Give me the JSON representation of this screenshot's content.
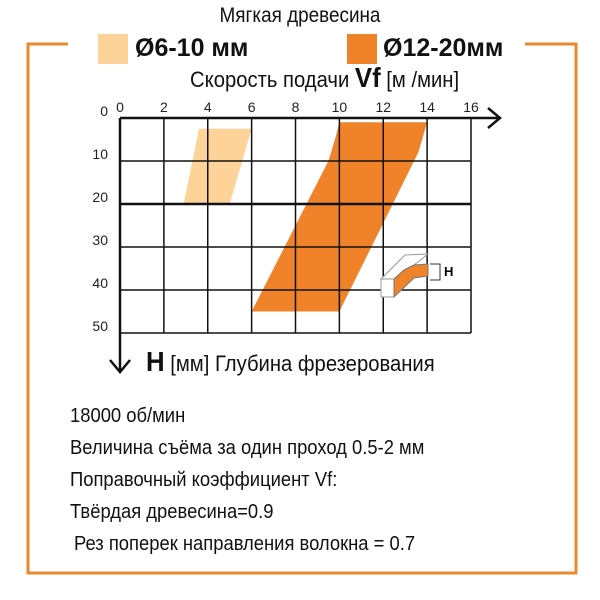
{
  "title": "Мягкая древесина",
  "legend": [
    {
      "label": "Ø6-10 мм",
      "color": "#fdd39a"
    },
    {
      "label": "Ø12-20мм",
      "color": "#f0832a"
    }
  ],
  "chart_data": {
    "type": "area",
    "xlabel": {
      "prefix": "Скорость подачи",
      "symbol": "Vf",
      "unit": "[м /мин]"
    },
    "ylabel": {
      "symbol": "H",
      "unit": "[мм]",
      "text": "Глубина фрезерования"
    },
    "x_ticks": [
      "0",
      "2",
      "4",
      "6",
      "8",
      "10",
      "12",
      "14",
      "16"
    ],
    "y_ticks": [
      "0",
      "10",
      "20",
      "30",
      "40",
      "50"
    ],
    "xlim": [
      0,
      16
    ],
    "ylim": [
      0,
      50
    ],
    "y_axis_inverted": true,
    "grid": true,
    "series": [
      {
        "name": "Ø6-10 мм",
        "color": "#fdd39a",
        "polygon": [
          [
            3.6,
            2.5
          ],
          [
            6,
            2.5
          ],
          [
            5,
            20
          ],
          [
            2.9,
            20
          ]
        ]
      },
      {
        "name": "Ø12-20мм",
        "color": "#f0832a",
        "polygon": [
          [
            10,
            1
          ],
          [
            14,
            1
          ],
          [
            13.6,
            8
          ],
          [
            10,
            45
          ],
          [
            6,
            45
          ],
          [
            9.5,
            10
          ],
          [
            9.8,
            5
          ]
        ]
      }
    ],
    "inset_label": "H"
  },
  "notes": [
    "18000 об/мин",
    "Величина съёма за один проход 0.5-2 мм",
    "Поправочный коэффициент Vf:",
    "Твёрдая древесина=0.9",
    "Рез поперек направления волокна = 0.7"
  ],
  "frame_color": "#e8892f"
}
